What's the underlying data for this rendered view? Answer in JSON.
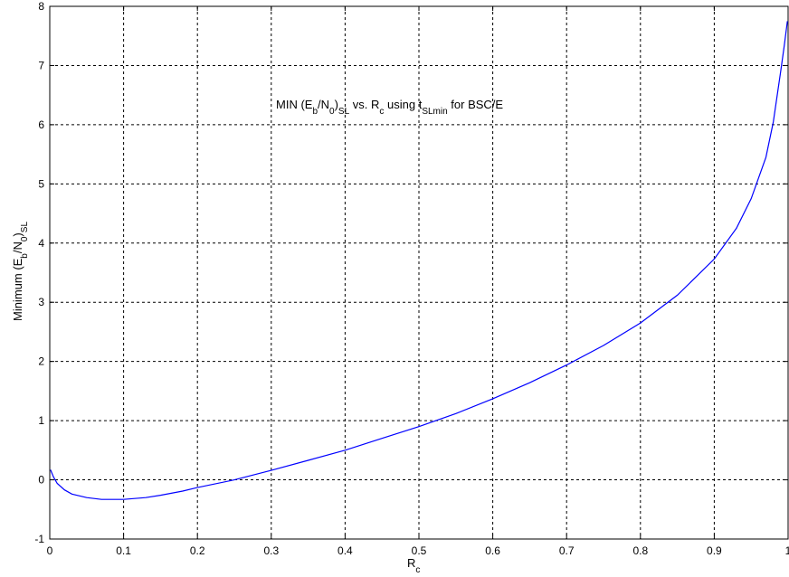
{
  "chart_data": {
    "type": "line",
    "title": {
      "parts": [
        {
          "t": "MIN (E"
        },
        {
          "t": "b",
          "sub": true
        },
        {
          "t": "/N"
        },
        {
          "t": "0",
          "sub": true
        },
        {
          "t": ")"
        },
        {
          "t": "SL",
          "sub": true
        },
        {
          "t": " vs. R"
        },
        {
          "t": "c",
          "sub": true
        },
        {
          "t": " using t"
        },
        {
          "t": "SLmin",
          "sub": true
        },
        {
          "t": " for BSC/E"
        }
      ]
    },
    "xlabel": {
      "parts": [
        {
          "t": "R"
        },
        {
          "t": "c",
          "sub": true
        }
      ]
    },
    "ylabel": {
      "parts": [
        {
          "t": "Minimum (E"
        },
        {
          "t": "b",
          "sub": true
        },
        {
          "t": "/N"
        },
        {
          "t": "0",
          "sub": true
        },
        {
          "t": ")"
        },
        {
          "t": "SL",
          "sub": true
        }
      ]
    },
    "xlim": [
      0,
      1
    ],
    "ylim": [
      -1,
      8
    ],
    "xticks": [
      "0",
      "0.1",
      "0.2",
      "0.3",
      "0.4",
      "0.5",
      "0.6",
      "0.7",
      "0.8",
      "0.9",
      "1"
    ],
    "yticks": [
      "-1",
      "0",
      "1",
      "2",
      "3",
      "4",
      "5",
      "6",
      "7",
      "8"
    ],
    "grid": true,
    "series": [
      {
        "color": "#0000ff",
        "x": [
          0.001,
          0.005,
          0.01,
          0.02,
          0.03,
          0.05,
          0.07,
          0.1,
          0.13,
          0.15,
          0.18,
          0.2,
          0.25,
          0.3,
          0.35,
          0.4,
          0.45,
          0.5,
          0.55,
          0.6,
          0.65,
          0.7,
          0.75,
          0.8,
          0.85,
          0.9,
          0.93,
          0.95,
          0.97,
          0.98,
          0.99,
          0.995,
          0.999
        ],
        "y": [
          0.17,
          0.05,
          -0.06,
          -0.17,
          -0.24,
          -0.3,
          -0.33,
          -0.33,
          -0.3,
          -0.26,
          -0.19,
          -0.13,
          0.0,
          0.16,
          0.33,
          0.5,
          0.7,
          0.9,
          1.12,
          1.37,
          1.64,
          1.94,
          2.27,
          2.65,
          3.12,
          3.73,
          4.25,
          4.75,
          5.45,
          6.05,
          6.9,
          7.35,
          7.75
        ]
      }
    ]
  }
}
